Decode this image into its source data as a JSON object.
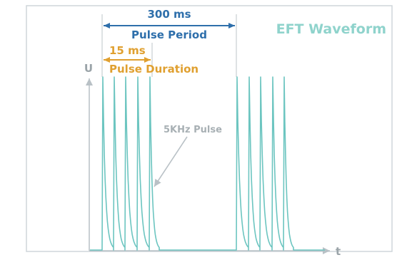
{
  "title": "EFT Waveform",
  "period": {
    "value": "300 ms",
    "label": "Pulse Period"
  },
  "duration": {
    "value": "15 ms",
    "label": "Pulse Duration"
  },
  "pulse_label": "5KHz Pulse",
  "axis": {
    "y": "U",
    "x": "t"
  },
  "colors": {
    "frame": "#cfd6da",
    "wave": "#6cc5c0",
    "title": "#8fd3cc",
    "period": "#2e6fab",
    "duration": "#e0a030",
    "axis": "#b9c1c6",
    "pulse_text": "#a8b0b4",
    "guide": "#c8ced2"
  }
}
